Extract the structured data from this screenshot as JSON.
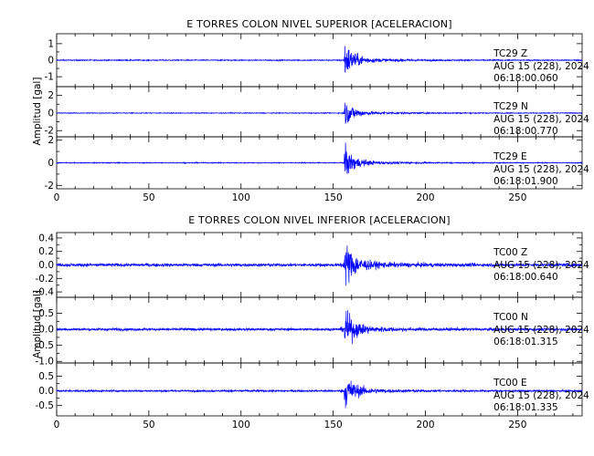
{
  "chart_data": [
    {
      "type": "line",
      "title": "E TORRES COLON NIVEL SUPERIOR [ACELERACION]",
      "ylabel": "Amplitud [gal]",
      "xlim": [
        0,
        285
      ],
      "x_ticks": [
        0,
        50,
        100,
        150,
        200,
        250
      ],
      "line_color": "#0000ff",
      "series": [
        {
          "name": "TC29 Z",
          "station": "TC29",
          "component": "Z",
          "date": "AUG 15 (228), 2024",
          "time": "06:18:00.060",
          "ylim": [
            -1.6,
            1.6
          ],
          "yticks": [
            -1,
            0,
            1
          ],
          "event_time": 156,
          "peak": 1.3,
          "noise": 0.04
        },
        {
          "name": "TC29 N",
          "station": "TC29",
          "component": "N",
          "date": "AUG 15 (228), 2024",
          "time": "06:18:00.770",
          "ylim": [
            -2.7,
            3.0
          ],
          "yticks": [
            -2,
            0,
            2
          ],
          "event_time": 156,
          "peak": 1.8,
          "noise": 0.06
        },
        {
          "name": "TC29 E",
          "station": "TC29",
          "component": "E",
          "date": "AUG 15 (228), 2024",
          "time": "06:18:01.900",
          "ylim": [
            -2.3,
            2.3
          ],
          "yticks": [
            -2,
            0,
            2
          ],
          "event_time": 156,
          "peak": 1.7,
          "noise": 0.05
        }
      ]
    },
    {
      "type": "line",
      "title": "E TORRES COLON NIVEL INFERIOR [ACELERACION]",
      "ylabel": "Amplitud [gal]",
      "xlim": [
        0,
        285
      ],
      "x_ticks": [
        0,
        50,
        100,
        150,
        200,
        250
      ],
      "line_color": "#0000ff",
      "series": [
        {
          "name": "TC00 Z",
          "station": "TC00",
          "component": "Z",
          "date": "AUG 15 (228), 2024",
          "time": "06:18:00.640",
          "ylim": [
            -0.48,
            0.48
          ],
          "yticks": [
            -0.4,
            -0.2,
            0.0,
            0.2,
            0.4
          ],
          "ytick_labels": [
            "-0.4",
            "-0.2",
            "0.0",
            "0.2",
            "0.4"
          ],
          "event_time": 156,
          "peak": 0.42,
          "noise": 0.03
        },
        {
          "name": "TC00 N",
          "station": "TC00",
          "component": "N",
          "date": "AUG 15 (228), 2024",
          "time": "06:18:01.315",
          "ylim": [
            -1.05,
            1.0
          ],
          "yticks": [
            -1.0,
            -0.5,
            0.0,
            0.5
          ],
          "ytick_labels": [
            "-1.0",
            "-0.5",
            "0.0",
            "0.5"
          ],
          "event_time": 156,
          "peak": 0.75,
          "noise": 0.05
        },
        {
          "name": "TC00 E",
          "station": "TC00",
          "component": "E",
          "date": "AUG 15 (228), 2024",
          "time": "06:18:01.335",
          "ylim": [
            -0.85,
            0.95
          ],
          "yticks": [
            -0.5,
            0.0,
            0.5
          ],
          "ytick_labels": [
            "-0.5",
            "0.0",
            "0.5"
          ],
          "event_time": 156,
          "peak": 0.75,
          "noise": 0.04
        }
      ]
    }
  ]
}
